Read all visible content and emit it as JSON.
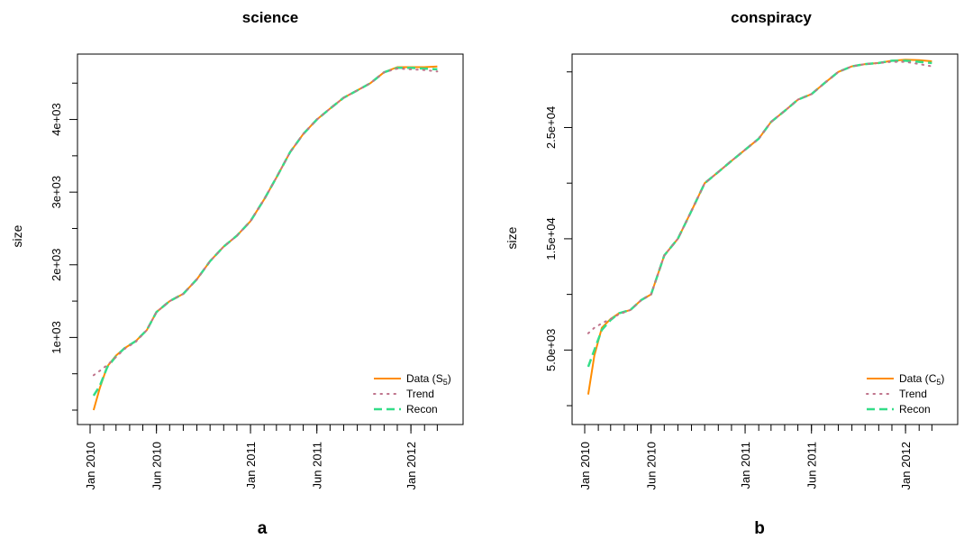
{
  "chart_data": [
    {
      "panel_label": "a",
      "title": "science",
      "type": "line",
      "ylabel": "size",
      "x_ticks": [
        "Jan 2010",
        "Jun 2010",
        "Jan 2011",
        "Jun 2011",
        "Jan 2012"
      ],
      "y_ticks": [
        "1e+03",
        "2e+03",
        "3e+03",
        "4e+03"
      ],
      "y_tick_values": [
        1000,
        2000,
        3000,
        4000
      ],
      "y_minor_tick_values": [
        0,
        500,
        1500,
        2500,
        3500,
        4500
      ],
      "xlim": [
        "2010-01-01",
        "2012-03-31"
      ],
      "ylim": [
        0,
        4900
      ],
      "legend_position": "bottom-right",
      "x": [
        "2010-01-09",
        "2010-01-23",
        "2010-02-09",
        "2010-03-01",
        "2010-03-20",
        "2010-04-15",
        "2010-05-10",
        "2010-06-01",
        "2010-07-01",
        "2010-08-01",
        "2010-09-01",
        "2010-10-01",
        "2010-11-01",
        "2010-12-01",
        "2011-01-01",
        "2011-02-01",
        "2011-03-01",
        "2011-04-01",
        "2011-05-01",
        "2011-06-01",
        "2011-07-01",
        "2011-08-01",
        "2011-09-01",
        "2011-10-01",
        "2011-11-01",
        "2011-12-01",
        "2012-01-01",
        "2012-02-01",
        "2012-03-01"
      ],
      "series": [
        {
          "name": "Data (S5)",
          "color": "#ff8c00",
          "style": "solid",
          "values": [
            0,
            300,
            600,
            750,
            850,
            950,
            1100,
            1350,
            1500,
            1600,
            1800,
            2050,
            2250,
            2400,
            2600,
            2900,
            3200,
            3550,
            3800,
            4000,
            4150,
            4300,
            4400,
            4500,
            4650,
            4720,
            4720,
            4720,
            4730
          ]
        },
        {
          "name": "Trend",
          "color": "#c0748c",
          "style": "dotted",
          "values": [
            480,
            540,
            620,
            730,
            840,
            940,
            1100,
            1350,
            1500,
            1600,
            1800,
            2050,
            2250,
            2400,
            2600,
            2900,
            3200,
            3550,
            3800,
            4000,
            4150,
            4300,
            4400,
            4500,
            4650,
            4700,
            4690,
            4680,
            4660
          ]
        },
        {
          "name": "Recon",
          "color": "#33dd88",
          "style": "dashed",
          "values": [
            200,
            330,
            590,
            740,
            850,
            950,
            1100,
            1350,
            1500,
            1600,
            1800,
            2050,
            2250,
            2400,
            2600,
            2900,
            3200,
            3550,
            3800,
            4000,
            4150,
            4300,
            4400,
            4500,
            4650,
            4710,
            4710,
            4700,
            4690
          ]
        }
      ]
    },
    {
      "panel_label": "b",
      "title": "conspiracy",
      "type": "line",
      "ylabel": "size",
      "x_ticks": [
        "Jan 2010",
        "Jun 2010",
        "Jan 2011",
        "Jun 2011",
        "Jan 2012"
      ],
      "y_ticks": [
        "5.0e+03",
        "1.5e+04",
        "2.5e+04"
      ],
      "y_tick_values": [
        5000,
        15000,
        25000
      ],
      "y_minor_tick_values": [
        0,
        10000,
        20000,
        30000
      ],
      "xlim": [
        "2010-01-01",
        "2012-03-31"
      ],
      "ylim": [
        -400,
        31600
      ],
      "legend_position": "bottom-right",
      "x": [
        "2010-01-09",
        "2010-01-23",
        "2010-02-09",
        "2010-03-01",
        "2010-03-20",
        "2010-04-15",
        "2010-05-10",
        "2010-06-01",
        "2010-07-01",
        "2010-08-01",
        "2010-09-01",
        "2010-10-01",
        "2010-11-01",
        "2010-12-01",
        "2011-01-01",
        "2011-02-01",
        "2011-03-01",
        "2011-04-01",
        "2011-05-01",
        "2011-06-01",
        "2011-07-01",
        "2011-08-01",
        "2011-09-01",
        "2011-10-01",
        "2011-11-01",
        "2011-12-01",
        "2012-01-01",
        "2012-02-01",
        "2012-03-01"
      ],
      "series": [
        {
          "name": "Data (C5)",
          "color": "#ff8c00",
          "style": "solid",
          "values": [
            1000,
            4500,
            7000,
            7800,
            8300,
            8600,
            9500,
            10000,
            13500,
            15000,
            17500,
            20000,
            21000,
            22000,
            23000,
            24000,
            25500,
            26500,
            27500,
            28000,
            29000,
            30000,
            30500,
            30700,
            30800,
            31000,
            31100,
            31050,
            30950
          ]
        },
        {
          "name": "Trend",
          "color": "#c0748c",
          "style": "dotted",
          "values": [
            6500,
            7000,
            7400,
            7800,
            8200,
            8600,
            9500,
            10000,
            13500,
            15000,
            17500,
            20000,
            21000,
            22000,
            23000,
            24000,
            25500,
            26500,
            27500,
            28000,
            29000,
            30000,
            30500,
            30700,
            30800,
            30900,
            30900,
            30700,
            30500
          ]
        },
        {
          "name": "Recon",
          "color": "#33dd88",
          "style": "dashed",
          "values": [
            3500,
            5000,
            6800,
            7700,
            8300,
            8600,
            9500,
            10000,
            13500,
            15000,
            17500,
            20000,
            21000,
            22000,
            23000,
            24000,
            25500,
            26500,
            27500,
            28000,
            29000,
            30000,
            30500,
            30700,
            30800,
            31000,
            31000,
            30900,
            30800
          ]
        }
      ]
    }
  ],
  "legend": {
    "a": [
      {
        "text": "Data (",
        "sub_letter": "S",
        "sub": "5",
        "close": ")"
      },
      {
        "text": "Trend"
      },
      {
        "text": "Recon"
      }
    ],
    "b": [
      {
        "text": "Data (",
        "sub_letter": "C",
        "sub": "5",
        "close": ")"
      },
      {
        "text": "Trend"
      },
      {
        "text": "Recon"
      }
    ]
  }
}
